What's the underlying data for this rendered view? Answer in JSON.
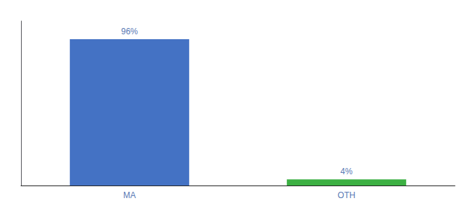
{
  "chart_data": {
    "type": "bar",
    "categories": [
      "MA",
      "OTH"
    ],
    "values": [
      96,
      4
    ],
    "value_labels": [
      "96%",
      "4%"
    ],
    "colors": [
      "#4472c4",
      "#3cb043"
    ],
    "ylim": [
      0,
      108
    ],
    "data_labels": true,
    "tick_labels": "x",
    "grid": false
  }
}
